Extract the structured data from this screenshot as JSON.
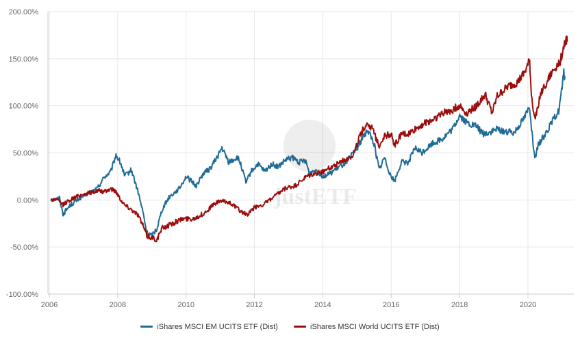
{
  "chart_data": {
    "type": "line",
    "title": "",
    "xlabel": "",
    "ylabel": "",
    "xlim": [
      2006.0,
      2021.3
    ],
    "ylim": [
      -100,
      200
    ],
    "x_ticks": [
      "2006",
      "2008",
      "2010",
      "2012",
      "2014",
      "2016",
      "2018",
      "2020"
    ],
    "y_ticks": [
      "200.00%",
      "150.00%",
      "100.00%",
      "50.00%",
      "0.00%",
      "-50.00%",
      "-100.00%"
    ],
    "grid": true,
    "legend_position": "bottom",
    "series": [
      {
        "name": "iShares MSCI EM UCITS ETF (Dist)",
        "color": "#1f6b96",
        "points": [
          [
            2006.05,
            0
          ],
          [
            2006.3,
            2
          ],
          [
            2006.4,
            -15
          ],
          [
            2006.6,
            -6
          ],
          [
            2006.9,
            2
          ],
          [
            2007.2,
            8
          ],
          [
            2007.4,
            12
          ],
          [
            2007.6,
            24
          ],
          [
            2007.8,
            30
          ],
          [
            2007.95,
            48
          ],
          [
            2008.1,
            38
          ],
          [
            2008.2,
            25
          ],
          [
            2008.4,
            32
          ],
          [
            2008.5,
            20
          ],
          [
            2008.6,
            8
          ],
          [
            2008.75,
            -15
          ],
          [
            2008.85,
            -35
          ],
          [
            2009.0,
            -38
          ],
          [
            2009.15,
            -30
          ],
          [
            2009.3,
            -10
          ],
          [
            2009.5,
            3
          ],
          [
            2009.8,
            12
          ],
          [
            2010.0,
            25
          ],
          [
            2010.3,
            15
          ],
          [
            2010.5,
            28
          ],
          [
            2010.7,
            33
          ],
          [
            2010.9,
            45
          ],
          [
            2011.05,
            55
          ],
          [
            2011.25,
            40
          ],
          [
            2011.5,
            45
          ],
          [
            2011.6,
            38
          ],
          [
            2011.75,
            18
          ],
          [
            2011.9,
            30
          ],
          [
            2012.1,
            38
          ],
          [
            2012.3,
            30
          ],
          [
            2012.5,
            38
          ],
          [
            2012.7,
            35
          ],
          [
            2012.9,
            42
          ],
          [
            2013.1,
            45
          ],
          [
            2013.3,
            40
          ],
          [
            2013.5,
            42
          ],
          [
            2013.6,
            28
          ],
          [
            2013.8,
            32
          ],
          [
            2014.0,
            25
          ],
          [
            2014.2,
            28
          ],
          [
            2014.4,
            33
          ],
          [
            2014.6,
            38
          ],
          [
            2014.8,
            45
          ],
          [
            2015.0,
            55
          ],
          [
            2015.2,
            68
          ],
          [
            2015.3,
            75
          ],
          [
            2015.5,
            60
          ],
          [
            2015.65,
            32
          ],
          [
            2015.8,
            45
          ],
          [
            2016.0,
            25
          ],
          [
            2016.1,
            20
          ],
          [
            2016.3,
            40
          ],
          [
            2016.5,
            40
          ],
          [
            2016.7,
            55
          ],
          [
            2016.9,
            50
          ],
          [
            2017.2,
            60
          ],
          [
            2017.5,
            65
          ],
          [
            2017.8,
            75
          ],
          [
            2018.0,
            90
          ],
          [
            2018.2,
            82
          ],
          [
            2018.5,
            78
          ],
          [
            2018.7,
            70
          ],
          [
            2018.9,
            72
          ],
          [
            2019.1,
            75
          ],
          [
            2019.4,
            72
          ],
          [
            2019.6,
            72
          ],
          [
            2019.9,
            88
          ],
          [
            2020.05,
            100
          ],
          [
            2020.12,
            70
          ],
          [
            2020.2,
            42
          ],
          [
            2020.3,
            58
          ],
          [
            2020.5,
            70
          ],
          [
            2020.7,
            82
          ],
          [
            2020.9,
            95
          ],
          [
            2021.0,
            120
          ],
          [
            2021.05,
            135
          ],
          [
            2021.08,
            128
          ]
        ]
      },
      {
        "name": "iShares MSCI World UCITS ETF (Dist)",
        "color": "#9b0d0d",
        "points": [
          [
            2006.05,
            0
          ],
          [
            2006.2,
            1
          ],
          [
            2006.4,
            -5
          ],
          [
            2006.6,
            0
          ],
          [
            2006.9,
            5
          ],
          [
            2007.2,
            8
          ],
          [
            2007.45,
            10
          ],
          [
            2007.6,
            8
          ],
          [
            2007.8,
            12
          ],
          [
            2007.95,
            9
          ],
          [
            2008.1,
            0
          ],
          [
            2008.2,
            -5
          ],
          [
            2008.4,
            -10
          ],
          [
            2008.6,
            -16
          ],
          [
            2008.75,
            -28
          ],
          [
            2008.85,
            -38
          ],
          [
            2009.0,
            -40
          ],
          [
            2009.15,
            -42
          ],
          [
            2009.3,
            -30
          ],
          [
            2009.6,
            -25
          ],
          [
            2009.9,
            -20
          ],
          [
            2010.2,
            -20
          ],
          [
            2010.5,
            -15
          ],
          [
            2010.8,
            -5
          ],
          [
            2011.0,
            -1
          ],
          [
            2011.3,
            -3
          ],
          [
            2011.6,
            -12
          ],
          [
            2011.8,
            -16
          ],
          [
            2012.0,
            -8
          ],
          [
            2012.3,
            -4
          ],
          [
            2012.6,
            4
          ],
          [
            2012.9,
            12
          ],
          [
            2013.2,
            15
          ],
          [
            2013.5,
            24
          ],
          [
            2013.7,
            27
          ],
          [
            2014.0,
            30
          ],
          [
            2014.3,
            36
          ],
          [
            2014.6,
            42
          ],
          [
            2014.9,
            48
          ],
          [
            2015.1,
            70
          ],
          [
            2015.3,
            82
          ],
          [
            2015.45,
            75
          ],
          [
            2015.65,
            58
          ],
          [
            2015.8,
            68
          ],
          [
            2016.0,
            70
          ],
          [
            2016.1,
            58
          ],
          [
            2016.3,
            70
          ],
          [
            2016.5,
            70
          ],
          [
            2016.7,
            75
          ],
          [
            2016.9,
            80
          ],
          [
            2017.2,
            85
          ],
          [
            2017.5,
            92
          ],
          [
            2017.8,
            96
          ],
          [
            2018.0,
            100
          ],
          [
            2018.2,
            92
          ],
          [
            2018.5,
            100
          ],
          [
            2018.75,
            112
          ],
          [
            2018.95,
            92
          ],
          [
            2019.1,
            110
          ],
          [
            2019.4,
            120
          ],
          [
            2019.7,
            125
          ],
          [
            2019.9,
            135
          ],
          [
            2020.05,
            148
          ],
          [
            2020.1,
            112
          ],
          [
            2020.2,
            85
          ],
          [
            2020.35,
            110
          ],
          [
            2020.55,
            125
          ],
          [
            2020.75,
            138
          ],
          [
            2020.95,
            148
          ],
          [
            2021.05,
            165
          ],
          [
            2021.12,
            170
          ],
          [
            2021.15,
            168
          ]
        ]
      }
    ]
  }
}
